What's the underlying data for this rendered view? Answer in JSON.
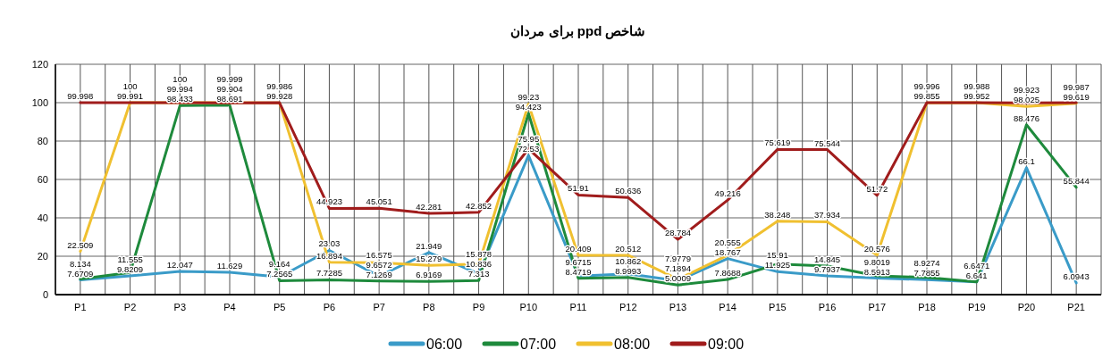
{
  "chart_data": {
    "type": "line",
    "title": "شاخص ppd برای مردان",
    "categories": [
      "P1",
      "P2",
      "P3",
      "P4",
      "P5",
      "P6",
      "P7",
      "P8",
      "P9",
      "P10",
      "P11",
      "P12",
      "P13",
      "P14",
      "P15",
      "P16",
      "P17",
      "P18",
      "P19",
      "P20",
      "P21"
    ],
    "series": [
      {
        "name": "06:00",
        "color": "#3a9bc8",
        "values": [
          7.6709,
          9.8209,
          12.047,
          11.629,
          9.164,
          23.03,
          9.6572,
          21.949,
          10.836,
          72.53,
          9.6715,
          10.862,
          7.1894,
          18.767,
          11.925,
          9.7937,
          8.5913,
          7.7855,
          6.641,
          66.1,
          6.0943
        ]
      },
      {
        "name": "07:00",
        "color": "#1e8a3c",
        "values": [
          8.134,
          11.555,
          98.433,
          98.691,
          7.2565,
          7.7285,
          7.1269,
          6.9169,
          7.313,
          94.423,
          8.4719,
          8.9993,
          5.0009,
          7.8688,
          15.91,
          14.845,
          9.8019,
          8.9274,
          6.6471,
          88.476,
          55.844
        ]
      },
      {
        "name": "08:00",
        "color": "#f0c030",
        "values": [
          22.509,
          100,
          100,
          99.999,
          99.928,
          16.894,
          16.575,
          15.279,
          15.878,
          99.23,
          20.409,
          20.512,
          7.9779,
          20.555,
          38.248,
          37.934,
          20.576,
          99.855,
          99.952,
          98.025,
          99.619
        ]
      },
      {
        "name": "09:00",
        "color": "#a01c1c",
        "values": [
          99.998,
          99.991,
          99.994,
          99.904,
          99.986,
          44.923,
          45.051,
          42.281,
          42.852,
          75.95,
          51.91,
          50.636,
          28.784,
          49.216,
          75.619,
          75.544,
          51.72,
          99.996,
          99.988,
          99.923,
          99.987
        ]
      }
    ],
    "ylim": [
      0,
      120
    ],
    "yticks": [
      0,
      20,
      40,
      60,
      80,
      100,
      120
    ],
    "grid": true,
    "legend": "bottom",
    "data_labels": true
  }
}
